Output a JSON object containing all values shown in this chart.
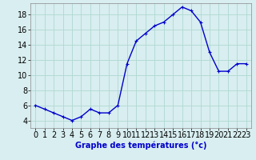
{
  "x": [
    0,
    1,
    2,
    3,
    4,
    5,
    6,
    7,
    8,
    9,
    10,
    11,
    12,
    13,
    14,
    15,
    16,
    17,
    18,
    19,
    20,
    21,
    22,
    23
  ],
  "y": [
    6.0,
    5.5,
    5.0,
    4.5,
    4.0,
    4.5,
    5.5,
    5.0,
    5.0,
    6.0,
    11.5,
    14.5,
    15.5,
    16.5,
    17.0,
    18.0,
    19.0,
    18.5,
    17.0,
    13.0,
    10.5,
    10.5,
    11.5,
    11.5
  ],
  "line_color": "#0000cc",
  "marker": "+",
  "marker_size": 3,
  "xlabel": "Graphe des températures (°c)",
  "xlabel_fontsize": 7,
  "xlim": [
    -0.5,
    23.5
  ],
  "ylim": [
    3,
    19.5
  ],
  "yticks": [
    4,
    6,
    8,
    10,
    12,
    14,
    16,
    18
  ],
  "xtick_labels": [
    "0",
    "1",
    "2",
    "3",
    "4",
    "5",
    "6",
    "7",
    "8",
    "9",
    "10",
    "11",
    "12",
    "13",
    "14",
    "15",
    "16",
    "17",
    "18",
    "19",
    "20",
    "21",
    "22",
    "23"
  ],
  "grid_color": "#b0d8d0",
  "bg_color": "#d8eef0",
  "tick_fontsize": 7,
  "line_width": 1.0
}
